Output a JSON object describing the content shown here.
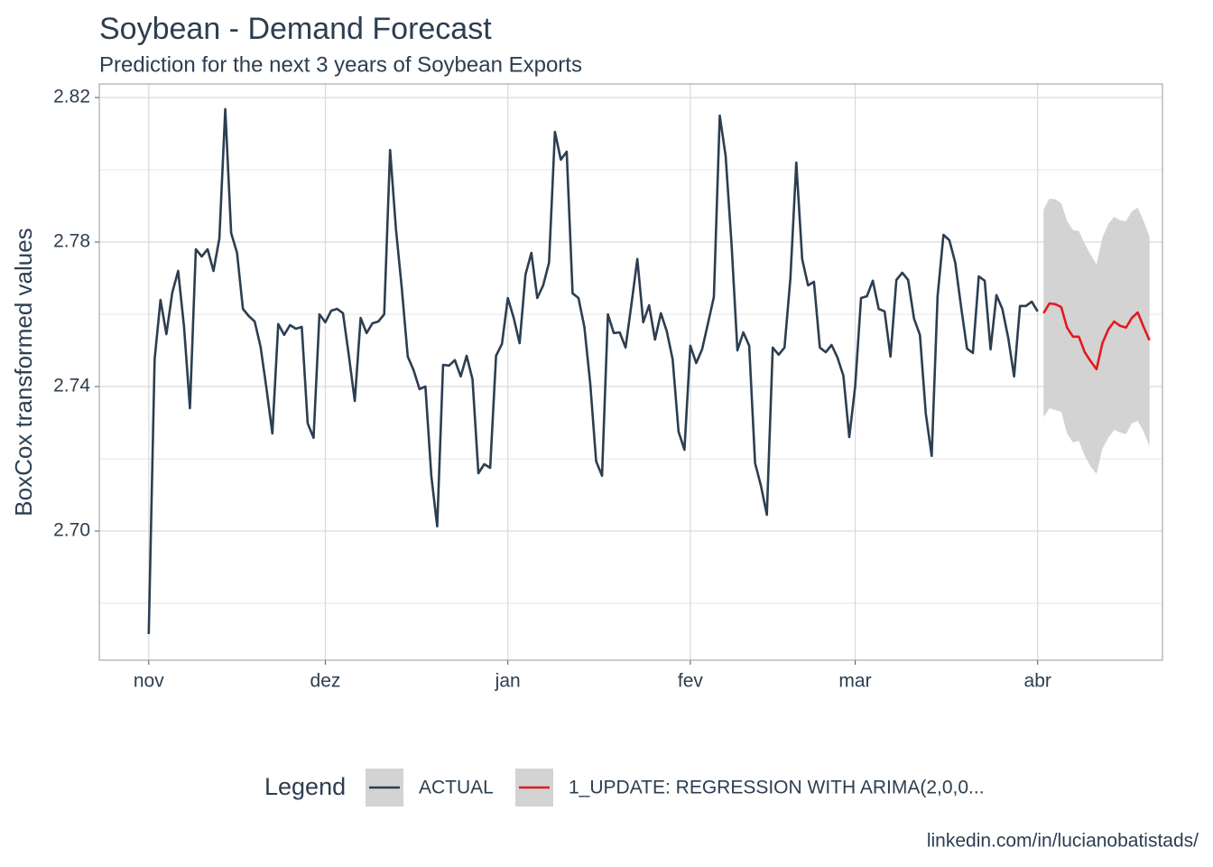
{
  "chart_data": {
    "type": "line",
    "title": "Soybean - Demand Forecast",
    "subtitle": "Prediction for the next 3 years of Soybean Exports",
    "y_label": "BoxCox transformed values",
    "caption": "linkedin.com/in/lucianobatistads/",
    "legend_title": "Legend",
    "legend_position": "bottom",
    "grid": true,
    "xlim": [
      -8.4,
      172.2
    ],
    "xticks": [
      {
        "value": 0,
        "label": "nov"
      },
      {
        "value": 30,
        "label": "dez"
      },
      {
        "value": 61,
        "label": "jan"
      },
      {
        "value": 92,
        "label": "fev"
      },
      {
        "value": 120,
        "label": "mar"
      },
      {
        "value": 151,
        "label": "abr"
      }
    ],
    "ylim": [
      2.66425,
      2.82375
    ],
    "yticks": [
      {
        "value": 2.7,
        "label": "2.70"
      },
      {
        "value": 2.74,
        "label": "2.74"
      },
      {
        "value": 2.78,
        "label": "2.78"
      },
      {
        "value": 2.82,
        "label": "2.82"
      }
    ],
    "minor_yticks": [
      2.68,
      2.72,
      2.76,
      2.8
    ],
    "band_color": "#d3d3d3",
    "series": [
      {
        "name": "ACTUAL",
        "color": "#2c3e50",
        "x": [
          0,
          1,
          2,
          3,
          4,
          5,
          6,
          7,
          8,
          9,
          10,
          11,
          12,
          13,
          14,
          15,
          16,
          17,
          18,
          19,
          20,
          21,
          22,
          23,
          24,
          25,
          26,
          27,
          28,
          29,
          30,
          31,
          32,
          33,
          34,
          35,
          36,
          37,
          38,
          39,
          40,
          41,
          42,
          43,
          44,
          45,
          46,
          47,
          48,
          49,
          50,
          51,
          52,
          53,
          54,
          55,
          56,
          57,
          58,
          59,
          60,
          61,
          62,
          63,
          64,
          65,
          66,
          67,
          68,
          69,
          70,
          71,
          72,
          73,
          74,
          75,
          76,
          77,
          78,
          79,
          80,
          81,
          82,
          83,
          84,
          85,
          86,
          87,
          88,
          89,
          90,
          91,
          92,
          93,
          94,
          95,
          96,
          97,
          98,
          99,
          100,
          101,
          102,
          103,
          104,
          105,
          106,
          107,
          108,
          109,
          110,
          111,
          112,
          113,
          114,
          115,
          116,
          117,
          118,
          119,
          120,
          121,
          122,
          123,
          124,
          125,
          126,
          127,
          128,
          129,
          130,
          131,
          132,
          133,
          134,
          135,
          136,
          137,
          138,
          139,
          140,
          141,
          142,
          143,
          144,
          145,
          146,
          147,
          148,
          149,
          150,
          151
        ],
        "values": [
          2.6715,
          2.7475,
          2.764,
          2.7545,
          2.766,
          2.772,
          2.7565,
          2.734,
          2.778,
          2.776,
          2.778,
          2.772,
          2.781,
          2.8168,
          2.7825,
          2.777,
          2.7615,
          2.7595,
          2.758,
          2.751,
          2.7395,
          2.727,
          2.7573,
          2.7543,
          2.757,
          2.756,
          2.7565,
          2.7298,
          2.7258,
          2.76,
          2.7578,
          2.761,
          2.7615,
          2.7603,
          2.7485,
          2.736,
          2.759,
          2.7548,
          2.7575,
          2.758,
          2.76,
          2.8055,
          2.7835,
          2.767,
          2.7483,
          2.7445,
          2.7393,
          2.74,
          2.7153,
          2.7013,
          2.746,
          2.7458,
          2.7473,
          2.7428,
          2.7485,
          2.742,
          2.716,
          2.7185,
          2.7175,
          2.7485,
          2.7518,
          2.7645,
          2.759,
          2.752,
          2.771,
          2.777,
          2.7645,
          2.768,
          2.7743,
          2.8105,
          2.8028,
          2.805,
          2.7658,
          2.7645,
          2.7565,
          2.7408,
          2.7193,
          2.7153,
          2.76,
          2.7548,
          2.755,
          2.7508,
          2.7628,
          2.7753,
          2.7578,
          2.7625,
          2.753,
          2.7603,
          2.7553,
          2.7475,
          2.7275,
          2.7225,
          2.7513,
          2.7465,
          2.7503,
          2.7575,
          2.7648,
          2.815,
          2.8038,
          2.7795,
          2.75,
          2.755,
          2.7513,
          2.7188,
          2.7125,
          2.7045,
          2.7508,
          2.7488,
          2.7508,
          2.77,
          2.802,
          2.7753,
          2.768,
          2.769,
          2.7508,
          2.7495,
          2.7515,
          2.748,
          2.743,
          2.726,
          2.74,
          2.7645,
          2.765,
          2.7693,
          2.7615,
          2.7608,
          2.7483,
          2.7695,
          2.7715,
          2.7695,
          2.7588,
          2.7543,
          2.7325,
          2.7208,
          2.765,
          2.782,
          2.7805,
          2.7743,
          2.762,
          2.7505,
          2.7493,
          2.7705,
          2.7693,
          2.7503,
          2.7653,
          2.7615,
          2.7535,
          2.7428,
          2.7623,
          2.7623,
          2.7635,
          2.7608
        ]
      },
      {
        "name": "1_UPDATE: REGRESSION WITH ARIMA(2,0,0...",
        "color": "#e31a1c",
        "x": [
          152,
          153,
          154,
          155,
          156,
          157,
          158,
          159,
          160,
          161,
          162,
          163,
          164,
          165,
          166,
          167,
          168,
          169,
          170
        ],
        "values": [
          2.7603,
          2.763,
          2.7628,
          2.762,
          2.7563,
          2.7538,
          2.7538,
          2.7495,
          2.747,
          2.7448,
          2.752,
          2.7558,
          2.758,
          2.7568,
          2.7563,
          2.759,
          2.7605,
          2.7565,
          2.7528
        ],
        "lower": [
          2.7315,
          2.734,
          2.7335,
          2.733,
          2.727,
          2.7245,
          2.725,
          2.7208,
          2.7178,
          2.7158,
          2.7228,
          2.7258,
          2.728,
          2.7273,
          2.7268,
          2.7298,
          2.7305,
          2.7275,
          2.7235
        ],
        "upper": [
          2.789,
          2.792,
          2.7918,
          2.7908,
          2.7858,
          2.7833,
          2.783,
          2.7795,
          2.7765,
          2.7738,
          2.7813,
          2.785,
          2.787,
          2.786,
          2.7858,
          2.7885,
          2.7895,
          2.7858,
          2.7815
        ]
      }
    ]
  }
}
